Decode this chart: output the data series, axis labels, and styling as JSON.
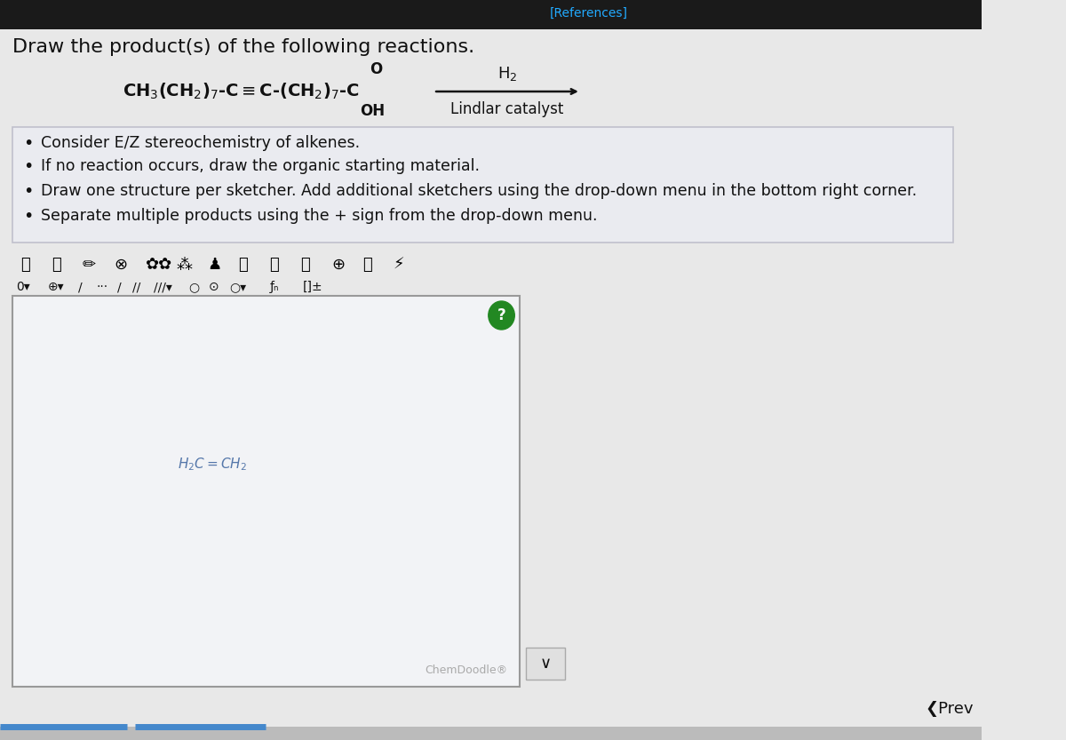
{
  "title": "Draw the product(s) of the following reactions.",
  "references_text": "[References]",
  "reaction_label_top": "H₂",
  "reaction_label_bottom": "Lindlar catalyst",
  "bullet_points": [
    "Consider E/Z stereochemistry of alkenes.",
    "If no reaction occurs, draw the organic starting material.",
    "Draw one structure per sketcher. Add additional sketchers using the drop-down menu in the bottom right corner.",
    "Separate multiple products using the + sign from the drop-down menu."
  ],
  "chemdoodle_text": "ChemDoodle®",
  "bg_color": "#d3d3d3",
  "page_bg": "#e8e8e8",
  "box_bg": "#eaebf0",
  "toolbar_bg": "#d8d8d8",
  "canvas_bg": "#f2f3f6",
  "text_color": "#111111",
  "blue_text": "#5577aa",
  "sketcher_border": "#999999",
  "references_color": "#22aaff",
  "arrow_color": "#111111",
  "top_bar_color": "#1a1a1a",
  "question_circle_color": "#228822",
  "title_fontsize": 16,
  "body_fontsize": 13,
  "reaction_fontsize": 13,
  "small_fontsize": 11
}
